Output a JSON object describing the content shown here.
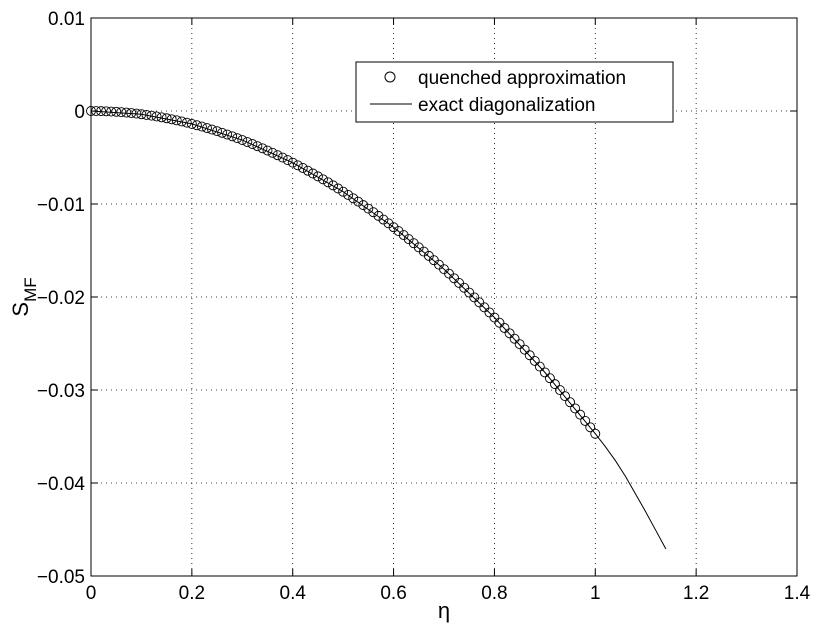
{
  "chart_data": {
    "type": "scatter",
    "title": "",
    "xlabel": "η",
    "ylabel": "S",
    "ylabel_subscript": "MF",
    "xlim": [
      0,
      1.4
    ],
    "ylim": [
      -0.05,
      0.01
    ],
    "xticks": [
      0,
      0.2,
      0.4,
      0.6,
      0.8,
      1,
      1.2,
      1.4
    ],
    "xtick_labels": [
      "0",
      "0.2",
      "0.4",
      "0.6",
      "0.8",
      "1",
      "1.2",
      "1.4"
    ],
    "yticks": [
      0.01,
      0,
      -0.01,
      -0.02,
      -0.03,
      -0.04,
      -0.05
    ],
    "ytick_labels": [
      "0.01",
      "0",
      "−0.01",
      "−0.02",
      "−0.03",
      "−0.04",
      "−0.05"
    ],
    "grid": true,
    "grid_style": "dotted",
    "legend_position": "top-right",
    "series": [
      {
        "name": "quenched approximation",
        "style": "markers",
        "marker": "open-circle",
        "color": "#000000",
        "x": [
          0,
          0.01,
          0.02,
          0.03,
          0.04,
          0.05,
          0.06,
          0.07,
          0.08,
          0.09,
          0.1,
          0.11,
          0.12,
          0.13,
          0.14,
          0.15,
          0.16,
          0.17,
          0.18,
          0.19,
          0.2,
          0.21,
          0.22,
          0.23,
          0.24,
          0.25,
          0.26,
          0.27,
          0.28,
          0.29,
          0.3,
          0.31,
          0.32,
          0.33,
          0.34,
          0.35,
          0.36,
          0.37,
          0.38,
          0.39,
          0.4,
          0.41,
          0.42,
          0.43,
          0.44,
          0.45,
          0.46,
          0.47,
          0.48,
          0.49,
          0.5,
          0.51,
          0.52,
          0.53,
          0.54,
          0.55,
          0.56,
          0.57,
          0.58,
          0.59,
          0.6,
          0.61,
          0.62,
          0.63,
          0.64,
          0.65,
          0.66,
          0.67,
          0.68,
          0.69,
          0.7,
          0.71,
          0.72,
          0.73,
          0.74,
          0.75,
          0.76,
          0.77,
          0.78,
          0.79,
          0.8,
          0.81,
          0.82,
          0.83,
          0.84,
          0.85,
          0.86,
          0.87,
          0.88,
          0.89,
          0.9,
          0.91,
          0.92,
          0.93,
          0.94,
          0.95,
          0.96,
          0.97,
          0.98,
          0.99,
          1
        ],
        "y": [
          0,
          -3e-06,
          -1.4e-05,
          -3.1e-05,
          -5.6e-05,
          -8.7e-05,
          -0.000125,
          -0.00017,
          -0.000222,
          -0.000281,
          -0.000347,
          -0.00042,
          -0.0005,
          -0.000586,
          -0.00068,
          -0.000781,
          -0.000889,
          -0.001003,
          -0.001124,
          -0.001253,
          -0.001388,
          -0.00153,
          -0.001679,
          -0.001836,
          -0.001999,
          -0.002169,
          -0.002346,
          -0.00253,
          -0.00272,
          -0.002918,
          -0.003123,
          -0.003335,
          -0.003554,
          -0.00378,
          -0.004012,
          -0.004252,
          -0.004498,
          -0.004752,
          -0.005012,
          -0.00528,
          -0.005554,
          -0.005835,
          -0.006123,
          -0.006418,
          -0.00672,
          -0.007029,
          -0.007345,
          -0.007668,
          -0.007997,
          -0.008334,
          -0.008678,
          -0.009028,
          -0.009385,
          -0.00975,
          -0.010121,
          -0.010499,
          -0.010884,
          -0.011276,
          -0.011675,
          -0.012081,
          -0.012494,
          -0.012914,
          -0.013341,
          -0.013774,
          -0.014215,
          -0.014662,
          -0.015117,
          -0.015578,
          -0.016046,
          -0.016522,
          -0.017004,
          -0.017493,
          -0.017989,
          -0.018492,
          -0.019002,
          -0.019519,
          -0.020043,
          -0.020574,
          -0.021111,
          -0.021656,
          -0.022208,
          -0.022766,
          -0.023332,
          -0.023904,
          -0.024484,
          -0.02507,
          -0.025663,
          -0.026263,
          -0.026871,
          -0.027485,
          -0.028106,
          -0.028734,
          -0.029369,
          -0.030011,
          -0.03066,
          -0.031315,
          -0.031978,
          -0.032648,
          -0.033324,
          -0.034008,
          -0.0347
        ]
      },
      {
        "name": "exact diagonalization",
        "style": "line",
        "color": "#000000",
        "x": [
          0,
          0.1,
          0.2,
          0.3,
          0.4,
          0.5,
          0.6,
          0.7,
          0.8,
          0.9,
          1,
          1.02,
          1.04,
          1.06,
          1.08,
          1.1,
          1.12,
          1.14
        ],
        "y": [
          0,
          -0.000347,
          -0.001388,
          -0.003123,
          -0.005554,
          -0.008678,
          -0.012494,
          -0.017004,
          -0.022208,
          -0.028106,
          -0.0347,
          -0.0361,
          -0.0376,
          -0.0393,
          -0.0412,
          -0.0431,
          -0.0451,
          -0.0471
        ]
      }
    ]
  }
}
